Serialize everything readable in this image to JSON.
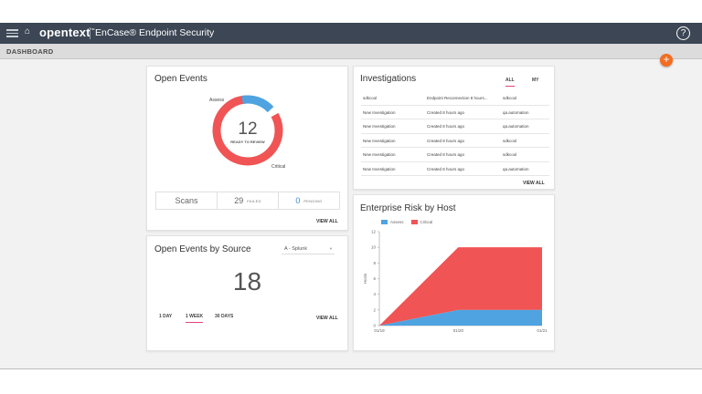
{
  "header": {
    "brand": "opentext",
    "brand_tm": "™",
    "product": "EnCase® Endpoint Security",
    "help_label": "?"
  },
  "subheader": {
    "title": "DASHBOARD"
  },
  "fab_label": "+",
  "colors": {
    "accent_pink": "#e0457b",
    "critical_red": "#f05454",
    "assess_blue": "#4fa3e0",
    "fab_orange": "#f26d21",
    "topbar": "#3c4654"
  },
  "open_events": {
    "title": "Open Events",
    "count": "12",
    "count_caption": "READY TO REVIEW",
    "assess_label": "Assess",
    "critical_label": "Critical",
    "assess_value": 2,
    "critical_value": 10,
    "stats": {
      "scans_label": "Scans",
      "failed_count": "29",
      "failed_label": "FAILED",
      "pending_count": "0",
      "pending_label": "PENDING"
    },
    "view_all": "VIEW ALL"
  },
  "investigations": {
    "title": "Investigations",
    "tabs": [
      {
        "label": "ALL",
        "active": true
      },
      {
        "label": "MY",
        "active": false
      }
    ],
    "rows": [
      {
        "name": "sdkcool",
        "created": "Endpoint Reconnection 8 hours...",
        "owner": "sdkcool"
      },
      {
        "name": "New Investigation",
        "created": "Created 8 hours ago",
        "owner": "qa.automation"
      },
      {
        "name": "New Investigation",
        "created": "Created 8 hours ago",
        "owner": "qa.automation"
      },
      {
        "name": "New Investigation",
        "created": "Created 8 hours ago",
        "owner": "sdkcool"
      },
      {
        "name": "New Investigation",
        "created": "Created 8 hours ago",
        "owner": "sdkcool"
      },
      {
        "name": "New Investigation",
        "created": "Created 8 hours ago",
        "owner": "qa.automation"
      }
    ],
    "view_all": "VIEW ALL"
  },
  "events_by_source": {
    "title": "Open Events by Source",
    "source_selected": "A - Splunk",
    "count": "18",
    "ranges": [
      {
        "label": "1 DAY",
        "active": false
      },
      {
        "label": "1 WEEK",
        "active": true
      },
      {
        "label": "30 DAYS",
        "active": false
      }
    ],
    "view_all": "VIEW ALL"
  },
  "risk": {
    "title": "Enterprise Risk by Host",
    "ylabel": "Hosts",
    "legend": [
      {
        "name": "Assess",
        "color": "#4fa3e0"
      },
      {
        "name": "Critical",
        "color": "#f05454"
      }
    ]
  },
  "chart_data": {
    "type": "area",
    "x": [
      "01/19",
      "01/20",
      "01/21"
    ],
    "series": [
      {
        "name": "Assess",
        "values": [
          0,
          2,
          2
        ]
      },
      {
        "name": "Critical",
        "values": [
          0,
          8,
          8
        ]
      }
    ],
    "stacked": true,
    "ylabel": "Hosts",
    "ylim": [
      0,
      12
    ],
    "yticks": [
      0,
      2,
      4,
      6,
      8,
      10,
      12
    ],
    "legend": "top-left"
  }
}
